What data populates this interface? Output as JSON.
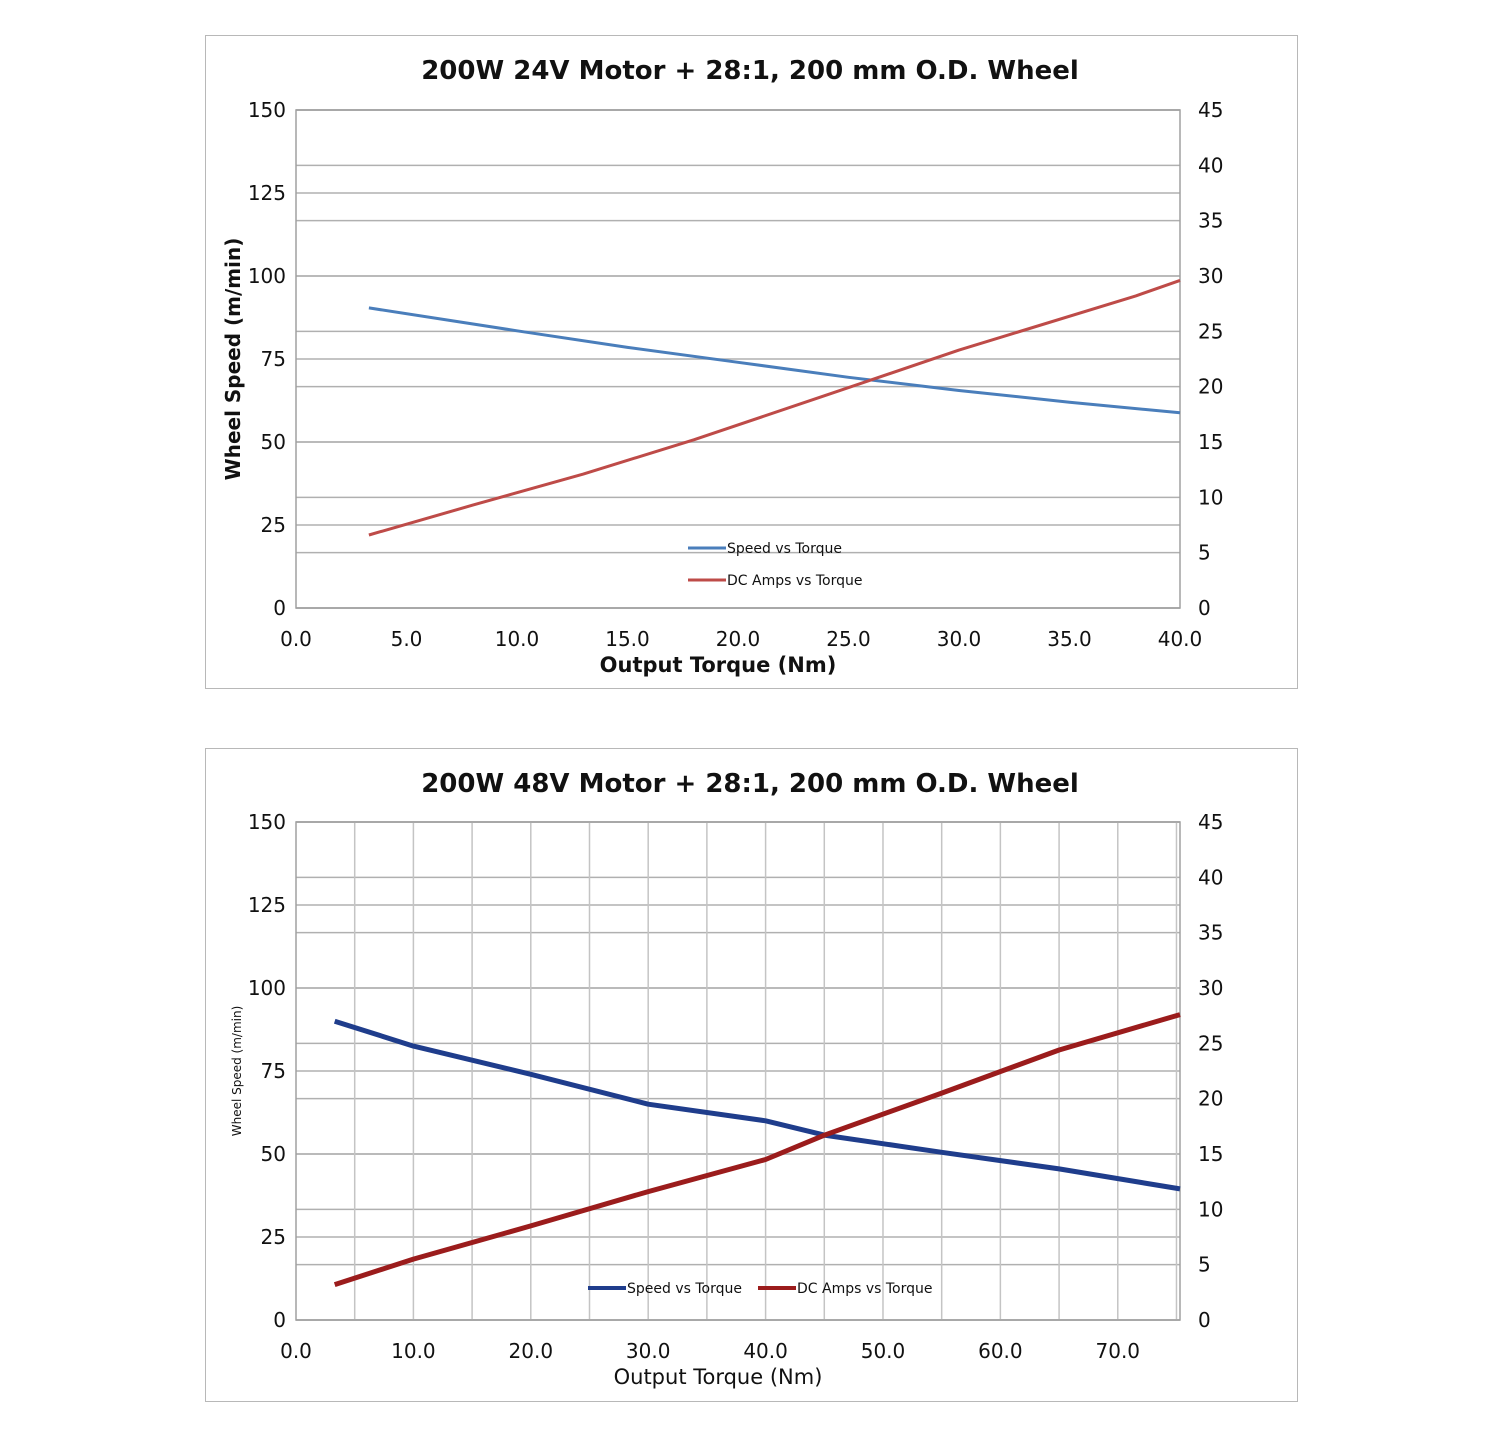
{
  "chart_data": [
    {
      "type": "line",
      "title": "200W 24V Motor + 28:1, 200 mm O.D. Wheel",
      "xlabel": "Output Torque (Nm)",
      "ylabel": "Wheel Speed (m/min)",
      "xlim": [
        0,
        40
      ],
      "ylim": [
        0,
        150
      ],
      "y2lim": [
        0,
        45
      ],
      "x_ticks": [
        "0.0",
        "5.0",
        "10.0",
        "15.0",
        "20.0",
        "25.0",
        "30.0",
        "35.0",
        "40.0"
      ],
      "x_tick_values": [
        0,
        5,
        10,
        15,
        20,
        25,
        30,
        35,
        40
      ],
      "y_ticks": [
        "0",
        "25",
        "50",
        "75",
        "100",
        "125",
        "150"
      ],
      "y_tick_values": [
        0,
        25,
        50,
        75,
        100,
        125,
        150
      ],
      "y2_ticks": [
        "0",
        "5",
        "10",
        "15",
        "20",
        "25",
        "30",
        "35",
        "40",
        "45"
      ],
      "y2_tick_values": [
        0,
        5,
        10,
        15,
        20,
        25,
        30,
        35,
        40,
        45
      ],
      "vertical_grid": false,
      "legend_placement": "bottom-center-stacked",
      "series": [
        {
          "name": "Speed vs Torque",
          "axis": "left",
          "color": "#4a7ebb",
          "points": [
            [
              3.3,
              90.4
            ],
            [
              10,
              83.5
            ],
            [
              15,
              78.5
            ],
            [
              20,
              74
            ],
            [
              25,
              69.5
            ],
            [
              30,
              65.5
            ],
            [
              35,
              62
            ],
            [
              40,
              58.8
            ]
          ]
        },
        {
          "name": "DC Amps vs Torque",
          "axis": "right",
          "color": "#be4b48",
          "points": [
            [
              3.3,
              6.6
            ],
            [
              8,
              9.3
            ],
            [
              13,
              12.1
            ],
            [
              18,
              15.2
            ],
            [
              23.8,
              19.1
            ],
            [
              30,
              23.3
            ],
            [
              38,
              28.2
            ],
            [
              40,
              29.6
            ]
          ]
        }
      ]
    },
    {
      "type": "line",
      "title": "200W 48V Motor + 28:1, 200 mm O.D. Wheel",
      "xlabel": "Output Torque (Nm)",
      "ylabel": "Wheel Speed (m/min)",
      "xlim": [
        0,
        75.3
      ],
      "ylim": [
        0,
        150
      ],
      "y2lim": [
        0,
        45
      ],
      "x_ticks": [
        "0.0",
        "10.0",
        "20.0",
        "30.0",
        "40.0",
        "50.0",
        "60.0",
        "70.0"
      ],
      "x_tick_values": [
        0,
        10,
        20,
        30,
        40,
        50,
        60,
        70
      ],
      "y_ticks": [
        "0",
        "25",
        "50",
        "75",
        "100",
        "125",
        "150"
      ],
      "y_tick_values": [
        0,
        25,
        50,
        75,
        100,
        125,
        150
      ],
      "y2_ticks": [
        "0",
        "5",
        "10",
        "15",
        "20",
        "25",
        "30",
        "35",
        "40",
        "45"
      ],
      "y2_tick_values": [
        0,
        5,
        10,
        15,
        20,
        25,
        30,
        35,
        40,
        45
      ],
      "vertical_grid": true,
      "legend_placement": "bottom-center-row",
      "series": [
        {
          "name": "Speed vs Torque",
          "axis": "left",
          "color": "#1f3d8c",
          "points": [
            [
              3.3,
              90
            ],
            [
              10,
              82.5
            ],
            [
              20,
              74
            ],
            [
              30,
              65
            ],
            [
              40,
              60
            ],
            [
              45,
              55.7
            ],
            [
              55,
              50.5
            ],
            [
              65,
              45.5
            ],
            [
              75.3,
              39.5
            ]
          ]
        },
        {
          "name": "DC Amps vs Torque",
          "axis": "right",
          "color": "#9b1c1c",
          "points": [
            [
              3.3,
              3.2
            ],
            [
              10,
              5.5
            ],
            [
              20,
              8.5
            ],
            [
              30,
              11.6
            ],
            [
              40,
              14.5
            ],
            [
              45,
              16.7
            ],
            [
              55,
              20.5
            ],
            [
              65,
              24.4
            ],
            [
              75.3,
              27.6
            ]
          ]
        }
      ]
    }
  ]
}
